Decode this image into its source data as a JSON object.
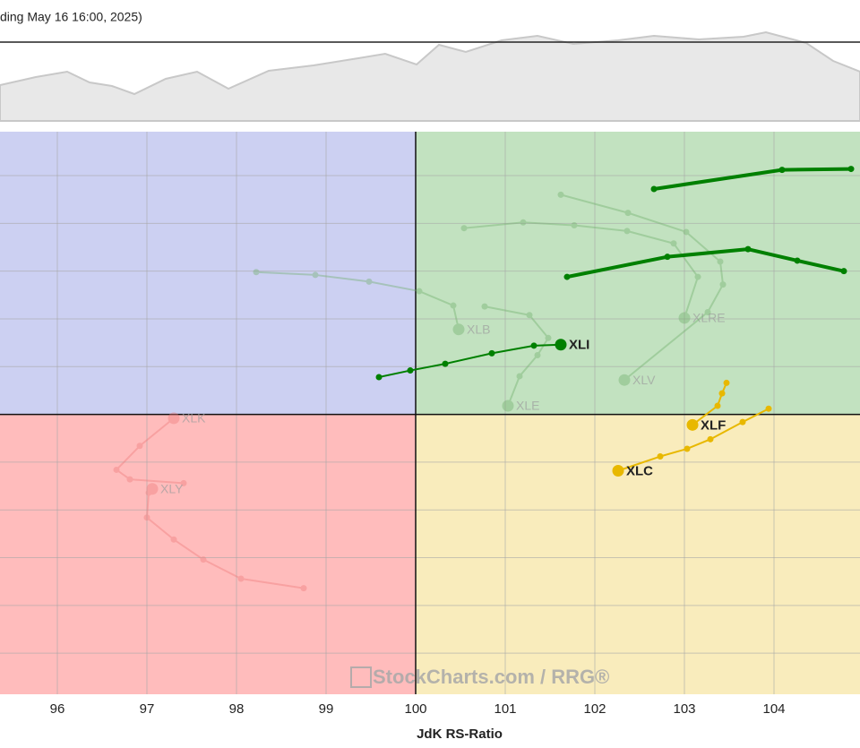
{
  "chart_data": {
    "type": "rrg",
    "subtitle": "ding May 16 16:00, 2025)",
    "x_label": "JdK RS-Ratio",
    "watermark": "StockCharts.com / RRG®",
    "xlim": [
      95.36,
      104.96
    ],
    "ylim": [
      97.07,
      102.96
    ],
    "xticks": [
      96,
      97,
      98,
      99,
      100,
      101,
      102,
      103,
      104
    ],
    "ygrid": [
      97.5,
      98,
      98.5,
      99,
      99.5,
      100,
      100.5,
      101,
      101.5,
      102,
      102.5
    ],
    "center": [
      100,
      100
    ],
    "grid": true,
    "series": [
      {
        "name": "XLB",
        "color": "#6fae6a",
        "faded": true,
        "x": [
          98.22,
          98.88,
          99.48,
          100.04,
          100.42,
          100.48
        ],
        "y": [
          101.49,
          101.46,
          101.39,
          101.29,
          101.14,
          100.89
        ]
      },
      {
        "name": "XLRE",
        "color": "#6fae6a",
        "faded": true,
        "x": [
          100.54,
          101.2,
          101.77,
          102.36,
          102.88,
          103.15,
          103.0
        ],
        "y": [
          101.95,
          102.01,
          101.98,
          101.92,
          101.79,
          101.44,
          101.01
        ]
      },
      {
        "name": "XLV",
        "color": "#6fae6a",
        "faded": true,
        "x": [
          101.62,
          102.37,
          103.02,
          103.4,
          103.43,
          103.26,
          102.33
        ],
        "y": [
          102.3,
          102.11,
          101.91,
          101.6,
          101.36,
          101.07,
          100.36
        ]
      },
      {
        "name": "XLE",
        "color": "#6fae6a",
        "faded": true,
        "x": [
          100.77,
          101.27,
          101.48,
          101.36,
          101.16,
          101.03
        ],
        "y": [
          101.13,
          101.04,
          100.8,
          100.62,
          100.4,
          100.09
        ]
      },
      {
        "name": "XLK",
        "color": "#f07a7a",
        "faded": true,
        "x": [
          97.41,
          96.81,
          96.66,
          96.92,
          97.3
        ],
        "y": [
          99.28,
          99.32,
          99.42,
          99.67,
          99.96
        ]
      },
      {
        "name": "XLY",
        "color": "#f07a7a",
        "faded": true,
        "x": [
          98.75,
          98.05,
          97.63,
          97.3,
          97.0,
          97.02,
          97.06
        ],
        "y": [
          98.18,
          98.28,
          98.48,
          98.69,
          98.92,
          99.18,
          99.22
        ]
      },
      {
        "color": "#008000",
        "faded": false,
        "x": [
          101.69,
          102.81,
          103.71,
          104.26,
          104.78
        ],
        "y": [
          101.44,
          101.65,
          101.73,
          101.61,
          101.5
        ]
      },
      {
        "color": "#008000",
        "faded": false,
        "x": [
          102.66,
          104.09,
          104.86
        ],
        "y": [
          102.36,
          102.56,
          102.57
        ]
      },
      {
        "name": "XLI",
        "color": "#008000",
        "faded": false,
        "x": [
          99.59,
          99.94,
          100.33,
          100.85,
          101.32,
          101.62
        ],
        "y": [
          100.39,
          100.46,
          100.53,
          100.64,
          100.72,
          100.73
        ]
      },
      {
        "name": "XLF",
        "color": "#e8b800",
        "faded": false,
        "x": [
          103.47,
          103.42,
          103.37,
          103.09
        ],
        "y": [
          100.33,
          100.22,
          100.09,
          99.89
        ]
      },
      {
        "name": "XLC",
        "color": "#e8b800",
        "faded": false,
        "x": [
          103.94,
          103.65,
          103.29,
          103.03,
          102.73,
          102.26
        ],
        "y": [
          100.06,
          99.92,
          99.74,
          99.64,
          99.56,
          99.41
        ]
      }
    ]
  }
}
